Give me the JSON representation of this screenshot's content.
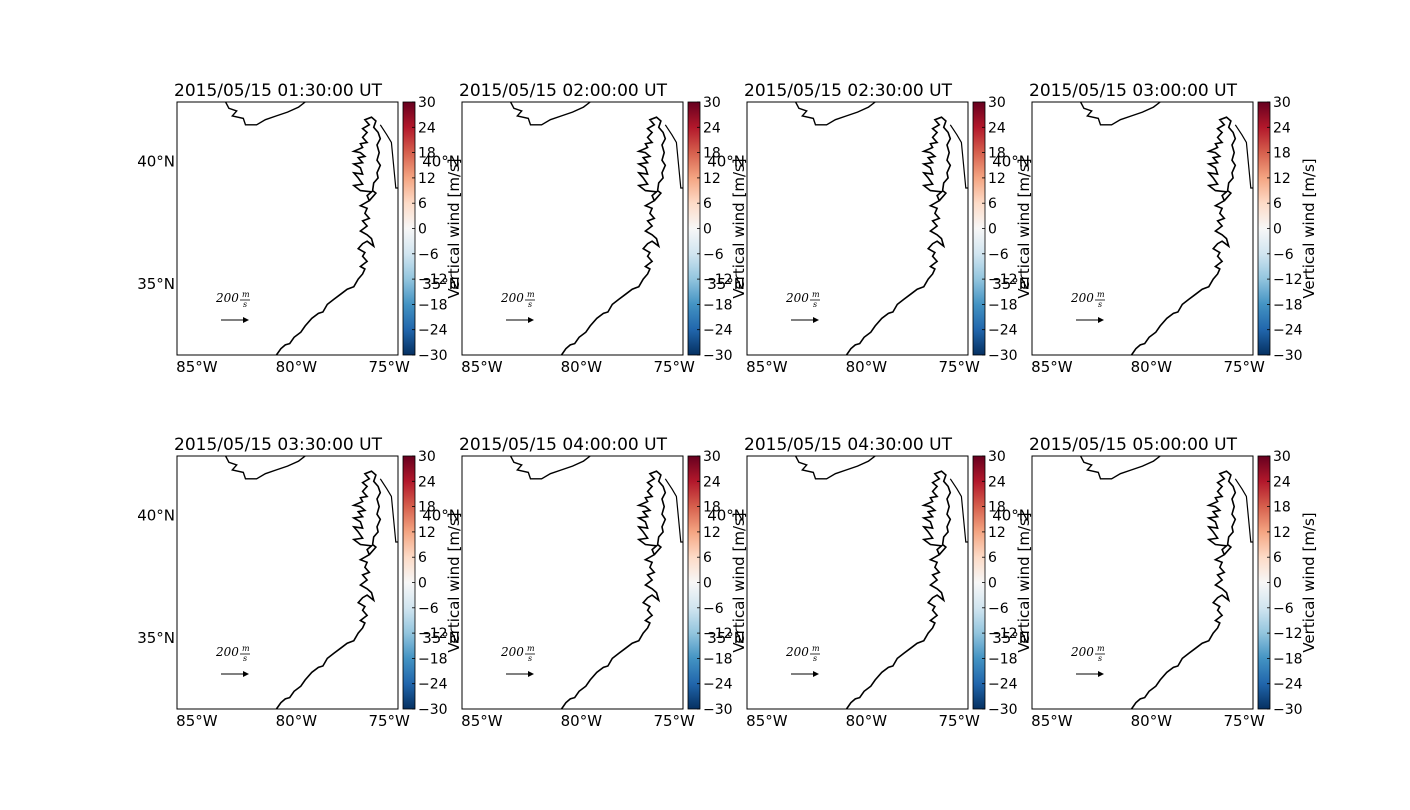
{
  "figure": {
    "colorbar_label": "Vertical wind [m/s]",
    "colorbar_ticks": [
      "30",
      "24",
      "18",
      "12",
      "6",
      "0",
      "−6",
      "−12",
      "−18",
      "−24",
      "−30"
    ],
    "colorbar_range": [
      -30,
      30
    ],
    "colormap": [
      "#053061",
      "#2166ac",
      "#4393c3",
      "#92c5de",
      "#d1e5f0",
      "#f7f7f7",
      "#fddbc7",
      "#f4a582",
      "#d6604d",
      "#b2182b",
      "#67001f"
    ],
    "lon_ticks": [
      "85°W",
      "80°W",
      "75°W"
    ],
    "lat_ticks": [
      "40°N",
      "35°N"
    ],
    "quiver_key": {
      "value": "200",
      "unit_num": "m",
      "unit_den": "s"
    },
    "coastline_color": "#000000"
  },
  "chart_data": [
    {
      "type": "map",
      "title": "2015/05/15 01:30:00 UT",
      "lon_range": [
        -86,
        -75
      ],
      "lat_range": [
        32,
        42.5
      ]
    },
    {
      "type": "map",
      "title": "2015/05/15 02:00:00 UT",
      "lon_range": [
        -86,
        -75
      ],
      "lat_range": [
        32,
        42.5
      ]
    },
    {
      "type": "map",
      "title": "2015/05/15 02:30:00 UT",
      "lon_range": [
        -86,
        -75
      ],
      "lat_range": [
        32,
        42.5
      ]
    },
    {
      "type": "map",
      "title": "2015/05/15 03:00:00 UT",
      "lon_range": [
        -86,
        -75
      ],
      "lat_range": [
        32,
        42.5
      ]
    },
    {
      "type": "map",
      "title": "2015/05/15 03:30:00 UT",
      "lon_range": [
        -86,
        -75
      ],
      "lat_range": [
        32,
        42.5
      ]
    },
    {
      "type": "map",
      "title": "2015/05/15 04:00:00 UT",
      "lon_range": [
        -86,
        -75
      ],
      "lat_range": [
        32,
        42.5
      ]
    },
    {
      "type": "map",
      "title": "2015/05/15 04:30:00 UT",
      "lon_range": [
        -86,
        -75
      ],
      "lat_range": [
        32,
        42.5
      ]
    },
    {
      "type": "map",
      "title": "2015/05/15 05:00:00 UT",
      "lon_range": [
        -86,
        -75
      ],
      "lat_range": [
        32,
        42.5
      ]
    }
  ]
}
